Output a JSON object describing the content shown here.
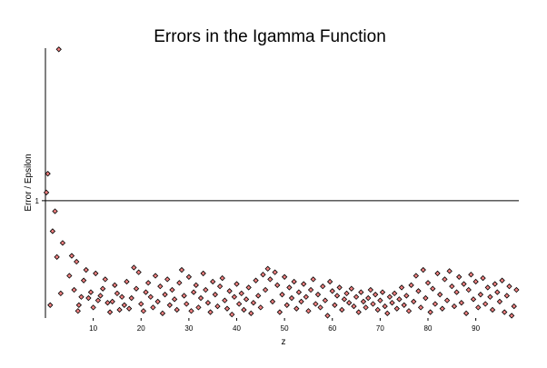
{
  "chart_data": {
    "type": "scatter",
    "title": "Errors in the Igamma Function",
    "xlabel": "z",
    "ylabel": "Error / Epsilon",
    "xlim": [
      0,
      99
    ],
    "ylim": [
      0,
      2.3
    ],
    "x_ticks": [
      10,
      20,
      30,
      40,
      50,
      60,
      70,
      80,
      90
    ],
    "y_ticks": [
      1
    ],
    "reference_line": {
      "y": 1
    },
    "grid": false,
    "legend": "none",
    "marker": {
      "shape": "diamond",
      "fill": "#f08080",
      "stroke": "#000000"
    },
    "points": [
      [
        0.2,
        1.07
      ],
      [
        0.5,
        1.23
      ],
      [
        1.0,
        0.11
      ],
      [
        1.5,
        0.74
      ],
      [
        2.0,
        0.91
      ],
      [
        2.4,
        0.52
      ],
      [
        2.8,
        2.29
      ],
      [
        3.2,
        0.21
      ],
      [
        3.6,
        0.64
      ],
      [
        5.0,
        0.36
      ],
      [
        5.5,
        0.53
      ],
      [
        6.0,
        0.24
      ],
      [
        6.5,
        0.48
      ],
      [
        6.8,
        0.06
      ],
      [
        7.0,
        0.11
      ],
      [
        7.5,
        0.18
      ],
      [
        8.0,
        0.32
      ],
      [
        8.5,
        0.41
      ],
      [
        9.0,
        0.17
      ],
      [
        9.5,
        0.22
      ],
      [
        10.0,
        0.09
      ],
      [
        10.5,
        0.38
      ],
      [
        11.0,
        0.15
      ],
      [
        11.5,
        0.19
      ],
      [
        12.0,
        0.25
      ],
      [
        12.5,
        0.33
      ],
      [
        13.0,
        0.13
      ],
      [
        13.5,
        0.05
      ],
      [
        14.0,
        0.14
      ],
      [
        14.5,
        0.28
      ],
      [
        15.0,
        0.21
      ],
      [
        15.5,
        0.07
      ],
      [
        16.0,
        0.18
      ],
      [
        16.5,
        0.11
      ],
      [
        17.0,
        0.31
      ],
      [
        17.5,
        0.08
      ],
      [
        18.0,
        0.17
      ],
      [
        18.5,
        0.43
      ],
      [
        19.0,
        0.25
      ],
      [
        19.5,
        0.39
      ],
      [
        20.0,
        0.12
      ],
      [
        20.5,
        0.06
      ],
      [
        21.0,
        0.22
      ],
      [
        21.5,
        0.3
      ],
      [
        22.0,
        0.18
      ],
      [
        22.5,
        0.09
      ],
      [
        23.0,
        0.36
      ],
      [
        23.5,
        0.14
      ],
      [
        24.0,
        0.27
      ],
      [
        24.5,
        0.04
      ],
      [
        25.0,
        0.2
      ],
      [
        25.5,
        0.33
      ],
      [
        26.0,
        0.11
      ],
      [
        26.5,
        0.24
      ],
      [
        27.0,
        0.16
      ],
      [
        27.5,
        0.07
      ],
      [
        28.0,
        0.3
      ],
      [
        28.5,
        0.41
      ],
      [
        29.0,
        0.19
      ],
      [
        29.5,
        0.12
      ],
      [
        30.0,
        0.35
      ],
      [
        30.5,
        0.06
      ],
      [
        31.0,
        0.22
      ],
      [
        31.5,
        0.28
      ],
      [
        32.0,
        0.09
      ],
      [
        32.5,
        0.17
      ],
      [
        33.0,
        0.38
      ],
      [
        33.5,
        0.24
      ],
      [
        34.0,
        0.13
      ],
      [
        34.5,
        0.05
      ],
      [
        35.0,
        0.31
      ],
      [
        35.5,
        0.2
      ],
      [
        36.0,
        0.1
      ],
      [
        36.5,
        0.27
      ],
      [
        37.0,
        0.34
      ],
      [
        37.5,
        0.15
      ],
      [
        38.0,
        0.08
      ],
      [
        38.5,
        0.23
      ],
      [
        39.0,
        0.03
      ],
      [
        39.5,
        0.18
      ],
      [
        40.0,
        0.29
      ],
      [
        40.5,
        0.12
      ],
      [
        41.0,
        0.21
      ],
      [
        41.5,
        0.07
      ],
      [
        42.0,
        0.16
      ],
      [
        42.5,
        0.26
      ],
      [
        43.0,
        0.04
      ],
      [
        43.5,
        0.13
      ],
      [
        44.0,
        0.32
      ],
      [
        44.5,
        0.19
      ],
      [
        45.0,
        0.09
      ],
      [
        45.5,
        0.37
      ],
      [
        46.0,
        0.24
      ],
      [
        46.5,
        0.42
      ],
      [
        47.0,
        0.33
      ],
      [
        47.5,
        0.14
      ],
      [
        48.0,
        0.39
      ],
      [
        48.5,
        0.28
      ],
      [
        49.0,
        0.05
      ],
      [
        49.5,
        0.2
      ],
      [
        50.0,
        0.35
      ],
      [
        50.5,
        0.11
      ],
      [
        51.0,
        0.26
      ],
      [
        51.5,
        0.17
      ],
      [
        52.0,
        0.31
      ],
      [
        52.5,
        0.08
      ],
      [
        53.0,
        0.22
      ],
      [
        53.5,
        0.14
      ],
      [
        54.0,
        0.29
      ],
      [
        54.5,
        0.18
      ],
      [
        55.0,
        0.06
      ],
      [
        55.5,
        0.24
      ],
      [
        56.0,
        0.33
      ],
      [
        56.5,
        0.12
      ],
      [
        57.0,
        0.2
      ],
      [
        57.5,
        0.09
      ],
      [
        58.0,
        0.27
      ],
      [
        58.5,
        0.15
      ],
      [
        59.0,
        0.02
      ],
      [
        59.5,
        0.31
      ],
      [
        60.0,
        0.23
      ],
      [
        60.5,
        0.11
      ],
      [
        61.0,
        0.19
      ],
      [
        61.5,
        0.26
      ],
      [
        62.0,
        0.07
      ],
      [
        62.5,
        0.16
      ],
      [
        63.0,
        0.21
      ],
      [
        63.5,
        0.13
      ],
      [
        64.0,
        0.25
      ],
      [
        64.5,
        0.1
      ],
      [
        65.0,
        0.18
      ],
      [
        65.5,
        0.05
      ],
      [
        66.0,
        0.22
      ],
      [
        66.5,
        0.14
      ],
      [
        67.0,
        0.09
      ],
      [
        67.5,
        0.17
      ],
      [
        68.0,
        0.24
      ],
      [
        68.5,
        0.12
      ],
      [
        69.0,
        0.2
      ],
      [
        69.5,
        0.07
      ],
      [
        70.0,
        0.15
      ],
      [
        70.5,
        0.22
      ],
      [
        71.0,
        0.1
      ],
      [
        71.5,
        0.04
      ],
      [
        72.0,
        0.18
      ],
      [
        72.5,
        0.13
      ],
      [
        73.0,
        0.21
      ],
      [
        73.5,
        0.08
      ],
      [
        74.0,
        0.16
      ],
      [
        74.5,
        0.26
      ],
      [
        75.0,
        0.11
      ],
      [
        75.5,
        0.19
      ],
      [
        76.0,
        0.06
      ],
      [
        76.5,
        0.28
      ],
      [
        77.0,
        0.14
      ],
      [
        77.5,
        0.36
      ],
      [
        78.0,
        0.23
      ],
      [
        78.5,
        0.09
      ],
      [
        79.0,
        0.41
      ],
      [
        79.5,
        0.17
      ],
      [
        80.0,
        0.3
      ],
      [
        80.5,
        0.05
      ],
      [
        81.0,
        0.25
      ],
      [
        81.5,
        0.12
      ],
      [
        82.0,
        0.38
      ],
      [
        82.5,
        0.2
      ],
      [
        83.0,
        0.08
      ],
      [
        83.5,
        0.33
      ],
      [
        84.0,
        0.15
      ],
      [
        84.5,
        0.4
      ],
      [
        85.0,
        0.27
      ],
      [
        85.5,
        0.1
      ],
      [
        86.0,
        0.22
      ],
      [
        86.5,
        0.35
      ],
      [
        87.0,
        0.13
      ],
      [
        87.5,
        0.29
      ],
      [
        88.0,
        0.04
      ],
      [
        88.5,
        0.24
      ],
      [
        89.0,
        0.37
      ],
      [
        89.5,
        0.16
      ],
      [
        90.0,
        0.31
      ],
      [
        90.5,
        0.09
      ],
      [
        91.0,
        0.2
      ],
      [
        91.5,
        0.34
      ],
      [
        92.0,
        0.12
      ],
      [
        92.5,
        0.26
      ],
      [
        93.0,
        0.18
      ],
      [
        93.5,
        0.07
      ],
      [
        94.0,
        0.29
      ],
      [
        94.5,
        0.22
      ],
      [
        95.0,
        0.14
      ],
      [
        95.5,
        0.32
      ],
      [
        96.0,
        0.05
      ],
      [
        96.5,
        0.19
      ],
      [
        97.0,
        0.27
      ],
      [
        97.5,
        0.02
      ],
      [
        98.0,
        0.1
      ],
      [
        98.5,
        0.24
      ]
    ]
  }
}
